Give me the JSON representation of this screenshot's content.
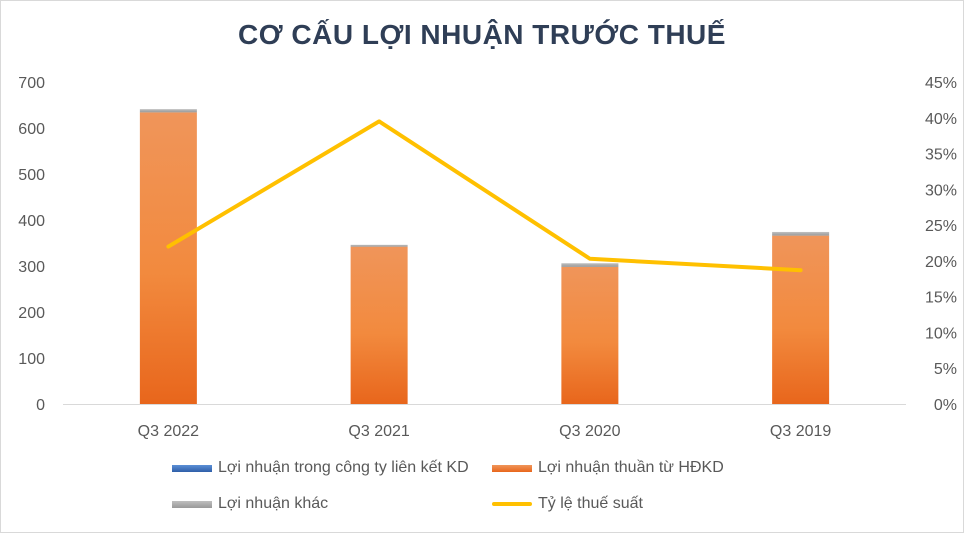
{
  "chart_data": {
    "type": "bar",
    "title": "CƠ CẤU LỢI NHUẬN TRƯỚC THUẾ",
    "stacked": true,
    "categories": [
      "Q3 2022",
      "Q3 2021",
      "Q3 2020",
      "Q3 2019"
    ],
    "series": [
      {
        "name": "Lợi nhuận trong công ty liên kết KD",
        "type": "bar",
        "axis": "left",
        "color": "#4472c4",
        "values": [
          0,
          0,
          0,
          0
        ]
      },
      {
        "name": "Lợi nhuận thuần từ HĐKD",
        "type": "bar",
        "axis": "left",
        "color": "#ed7d31",
        "values": [
          634,
          342,
          298,
          366
        ]
      },
      {
        "name": "Lợi nhuận khác",
        "type": "bar",
        "axis": "left",
        "color": "#a5a5a5",
        "values": [
          7,
          4,
          8,
          8
        ]
      },
      {
        "name": "Tỷ lệ thuế suất",
        "type": "line",
        "axis": "right",
        "color": "#ffc000",
        "values": [
          0.22,
          0.395,
          0.203,
          0.187
        ]
      }
    ],
    "y_left": {
      "min": 0,
      "max": 700,
      "step": 100,
      "ticks": [
        "0",
        "100",
        "200",
        "300",
        "400",
        "500",
        "600",
        "700"
      ]
    },
    "y_right": {
      "min": 0,
      "max": 0.45,
      "step": 0.05,
      "ticks": [
        "0%",
        "5%",
        "10%",
        "15%",
        "20%",
        "25%",
        "30%",
        "35%",
        "40%",
        "45%"
      ]
    },
    "legend_position": "bottom",
    "grid": false
  }
}
